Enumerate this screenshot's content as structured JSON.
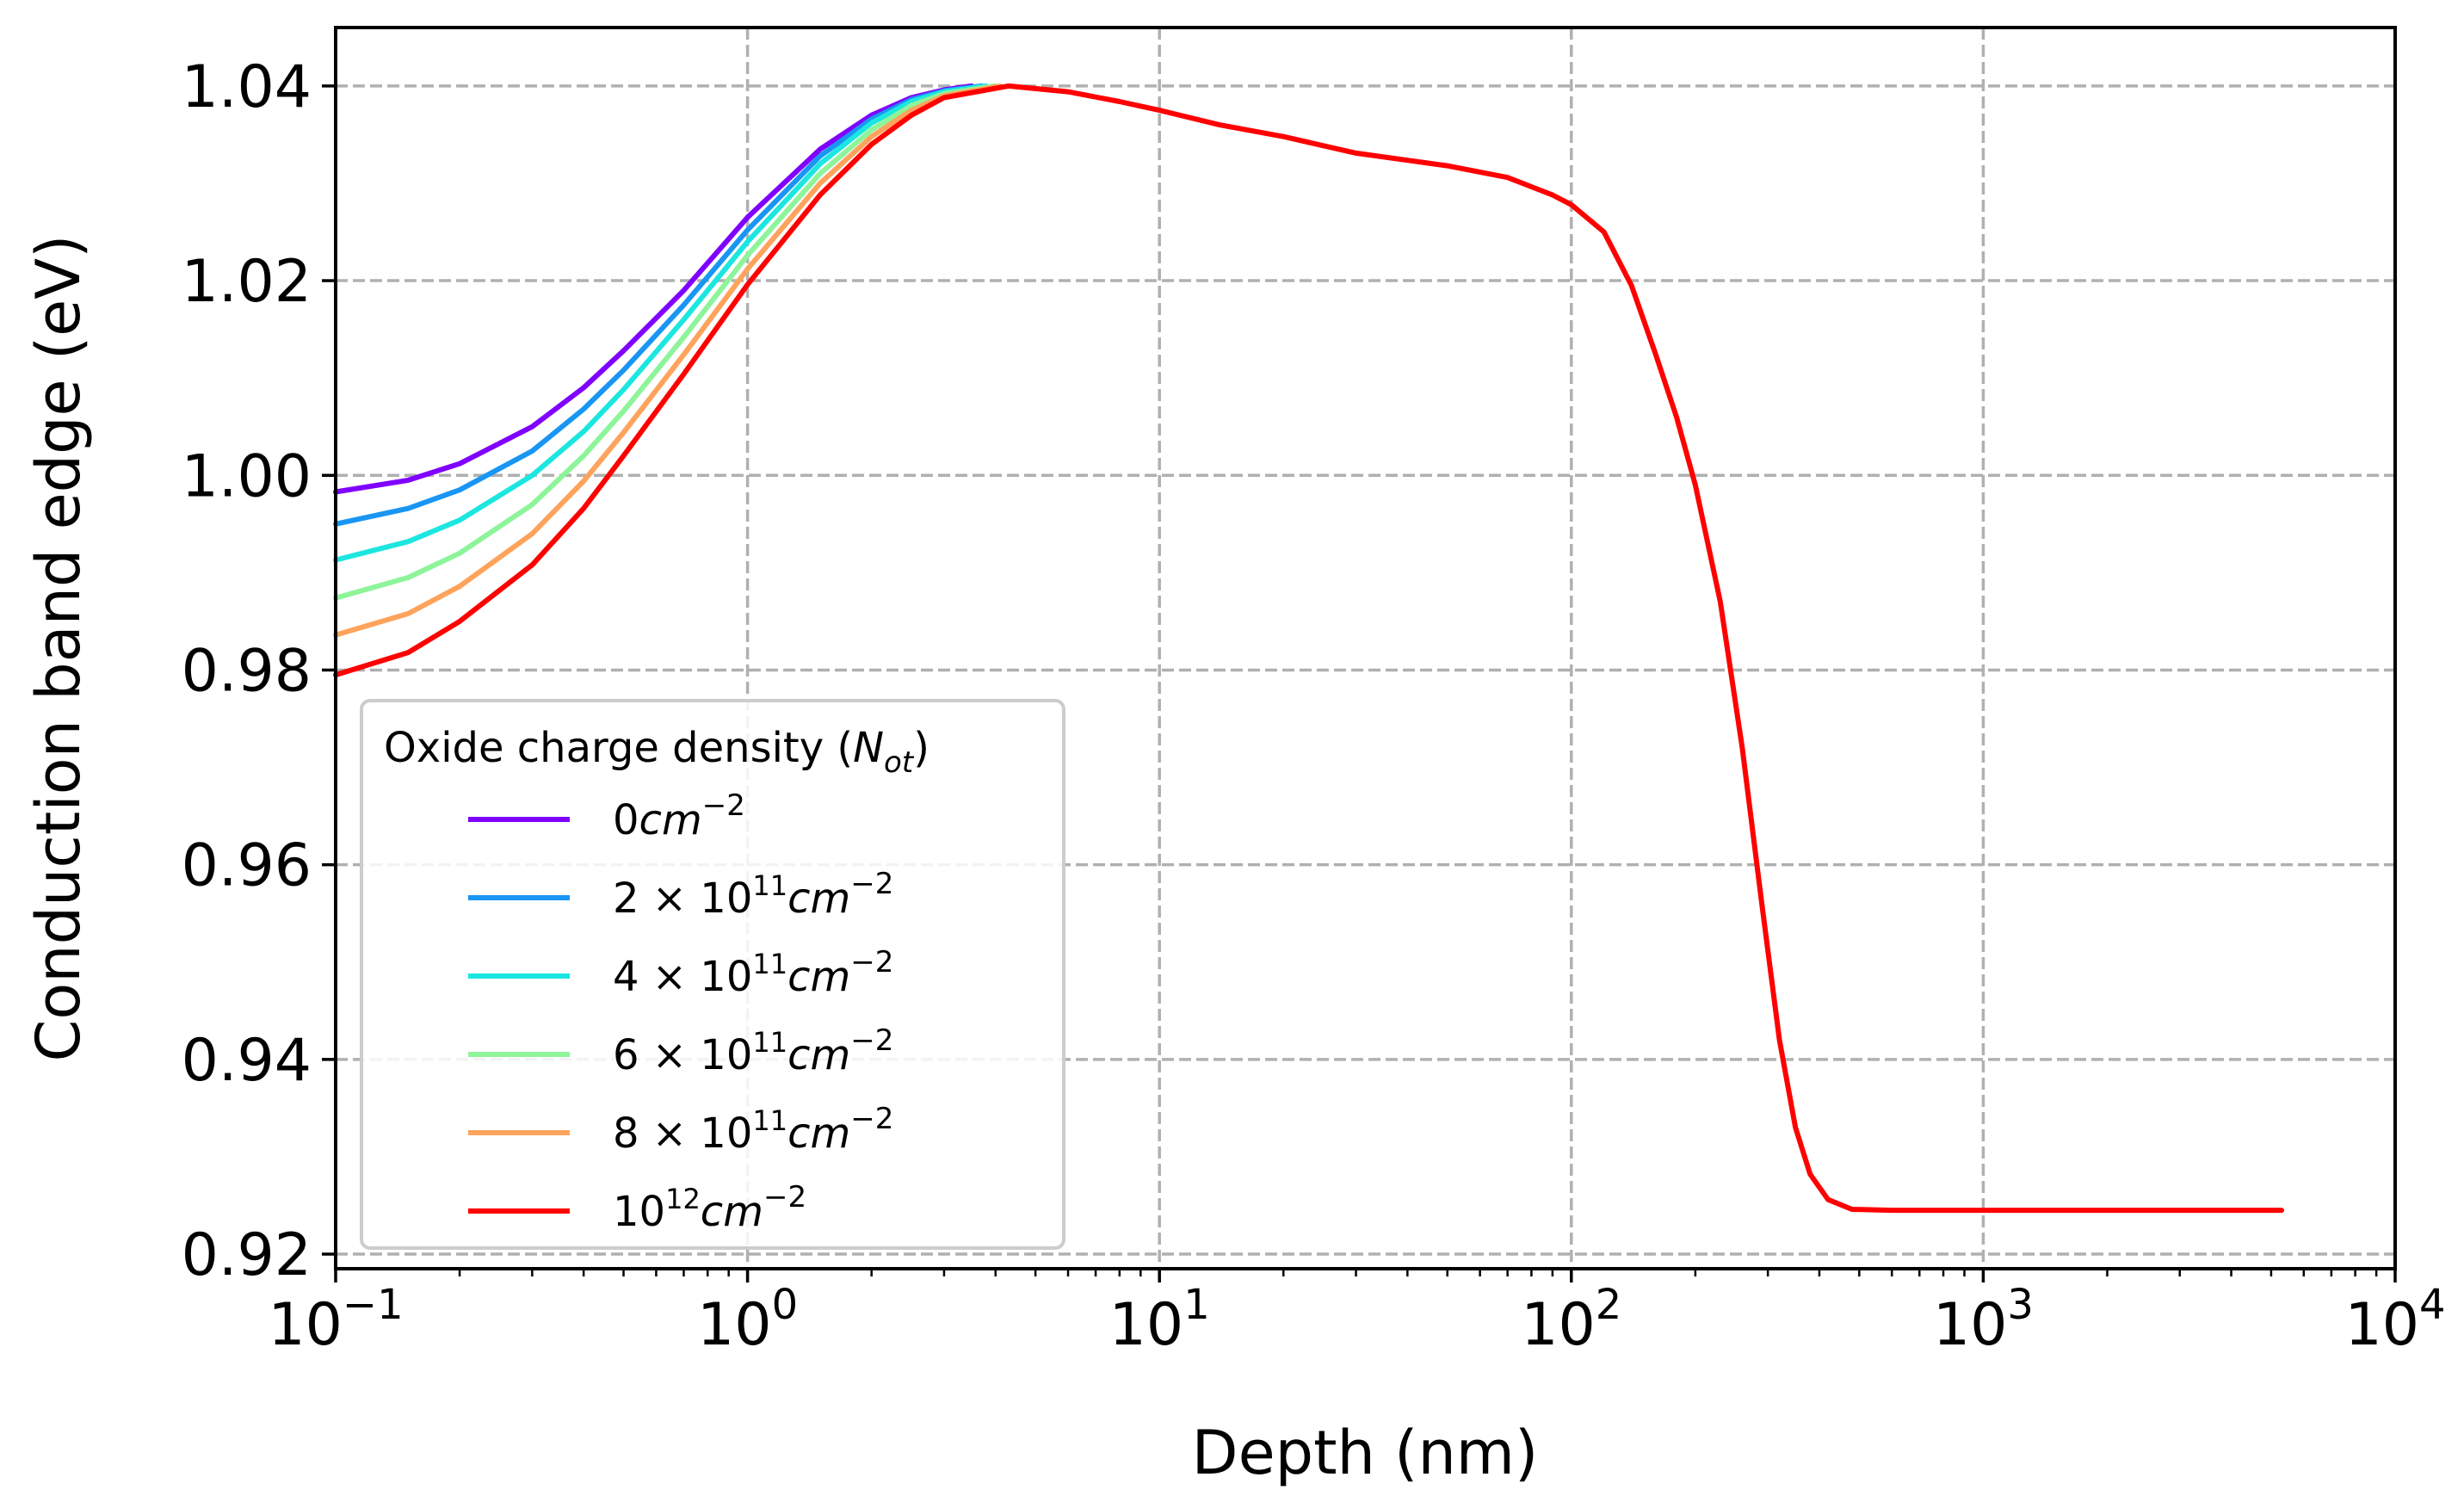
{
  "chart_data": {
    "type": "line",
    "x_scale": "log",
    "xlabel": "Depth (nm)",
    "ylabel": "Conduction band edge (eV)",
    "xlim": [
      0.1,
      10000
    ],
    "ylim": [
      0.9185,
      1.046
    ],
    "grid": true,
    "x_ticks": [
      {
        "value": 0.1,
        "base": "10",
        "exp": "−1"
      },
      {
        "value": 1,
        "base": "10",
        "exp": "0"
      },
      {
        "value": 10,
        "base": "10",
        "exp": "1"
      },
      {
        "value": 100,
        "base": "10",
        "exp": "2"
      },
      {
        "value": 1000,
        "base": "10",
        "exp": "3"
      },
      {
        "value": 10000,
        "base": "10",
        "exp": "4"
      }
    ],
    "y_ticks": [
      {
        "value": 0.92,
        "label": "0.92"
      },
      {
        "value": 0.94,
        "label": "0.94"
      },
      {
        "value": 0.96,
        "label": "0.96"
      },
      {
        "value": 0.98,
        "label": "0.98"
      },
      {
        "value": 1.0,
        "label": "1.00"
      },
      {
        "value": 1.02,
        "label": "1.02"
      },
      {
        "value": 1.04,
        "label": "1.04"
      }
    ],
    "legend": {
      "title": "Oxide charge density (",
      "title_symbol": "N",
      "title_sub": "ot",
      "title_close": ")",
      "placement": "lower-left"
    },
    "series": [
      {
        "name": "0cm−2",
        "coef": "",
        "power": "",
        "unit": "cm",
        "unit_exp": "−2",
        "lead": "0",
        "color": "#8000ff",
        "points": [
          [
            0.1,
            0.9983
          ],
          [
            0.15,
            0.9995
          ],
          [
            0.2,
            1.0012
          ],
          [
            0.3,
            1.005
          ],
          [
            0.4,
            1.009
          ],
          [
            0.5,
            1.0128
          ],
          [
            0.7,
            1.019
          ],
          [
            1.0,
            1.0265
          ],
          [
            1.5,
            1.0335
          ],
          [
            2.0,
            1.037
          ],
          [
            2.5,
            1.0388
          ],
          [
            3.0,
            1.0396
          ],
          [
            3.5,
            1.04
          ]
        ]
      },
      {
        "name": "2 × 10¹¹cm−2",
        "coef": "2 × ",
        "power": "11",
        "unit": "cm",
        "unit_exp": "−2",
        "lead": "10",
        "color": "#1996f3",
        "points": [
          [
            0.1,
            0.995
          ],
          [
            0.15,
            0.9966
          ],
          [
            0.2,
            0.9985
          ],
          [
            0.3,
            1.0025
          ],
          [
            0.4,
            1.0068
          ],
          [
            0.5,
            1.0108
          ],
          [
            0.7,
            1.0175
          ],
          [
            1.0,
            1.0252
          ],
          [
            1.5,
            1.0328
          ],
          [
            2.0,
            1.0366
          ],
          [
            2.5,
            1.0386
          ],
          [
            3.0,
            1.0395
          ],
          [
            3.7,
            1.04
          ]
        ]
      },
      {
        "name": "4 × 10¹¹cm−2",
        "coef": "4 × ",
        "power": "11",
        "unit": "cm",
        "unit_exp": "−2",
        "lead": "10",
        "color": "#1ce6e0",
        "points": [
          [
            0.1,
            0.9913
          ],
          [
            0.15,
            0.9932
          ],
          [
            0.2,
            0.9954
          ],
          [
            0.3,
            1.0
          ],
          [
            0.4,
            1.0045
          ],
          [
            0.5,
            1.0088
          ],
          [
            0.7,
            1.016
          ],
          [
            1.0,
            1.024
          ],
          [
            1.5,
            1.032
          ],
          [
            2.0,
            1.0362
          ],
          [
            2.5,
            1.0384
          ],
          [
            3.0,
            1.0394
          ],
          [
            3.8,
            1.04
          ]
        ]
      },
      {
        "name": "6 × 10¹¹cm−2",
        "coef": "6 × ",
        "power": "11",
        "unit": "cm",
        "unit_exp": "−2",
        "lead": "10",
        "color": "#8ef49a",
        "points": [
          [
            0.1,
            0.9874
          ],
          [
            0.15,
            0.9895
          ],
          [
            0.2,
            0.992
          ],
          [
            0.3,
            0.997
          ],
          [
            0.4,
            1.002
          ],
          [
            0.5,
            1.0066
          ],
          [
            0.7,
            1.0142
          ],
          [
            1.0,
            1.0226
          ],
          [
            1.5,
            1.031
          ],
          [
            2.0,
            1.0355
          ],
          [
            2.5,
            1.038
          ],
          [
            3.0,
            1.0392
          ],
          [
            4.0,
            1.04
          ]
        ]
      },
      {
        "name": "8 × 10¹¹cm−2",
        "coef": "8 × ",
        "power": "11",
        "unit": "cm",
        "unit_exp": "−2",
        "lead": "10",
        "color": "#fea35c",
        "points": [
          [
            0.1,
            0.9836
          ],
          [
            0.15,
            0.9858
          ],
          [
            0.2,
            0.9886
          ],
          [
            0.3,
            0.994
          ],
          [
            0.4,
            0.9994
          ],
          [
            0.5,
            1.0044
          ],
          [
            0.7,
            1.0124
          ],
          [
            1.0,
            1.0212
          ],
          [
            1.5,
            1.03
          ],
          [
            2.0,
            1.0348
          ],
          [
            2.5,
            1.0375
          ],
          [
            3.0,
            1.039
          ],
          [
            4.1,
            1.04
          ]
        ]
      },
      {
        "name": "10¹²cm−2",
        "coef": "",
        "power": "12",
        "unit": "cm",
        "unit_exp": "−2",
        "lead": "10",
        "color": "#ff0000",
        "points": [
          [
            0.1,
            0.9795
          ],
          [
            0.15,
            0.9818
          ],
          [
            0.2,
            0.985
          ],
          [
            0.3,
            0.9908
          ],
          [
            0.4,
            0.9966
          ],
          [
            0.5,
            1.002
          ],
          [
            0.7,
            1.0104
          ],
          [
            1.0,
            1.0196
          ],
          [
            1.5,
            1.0288
          ],
          [
            2.0,
            1.034
          ],
          [
            2.5,
            1.037
          ],
          [
            3.0,
            1.0388
          ],
          [
            4.3,
            1.04
          ],
          [
            6,
            1.0394
          ],
          [
            8,
            1.0384
          ],
          [
            10,
            1.0375
          ],
          [
            14,
            1.036
          ],
          [
            20,
            1.0348
          ],
          [
            30,
            1.0331
          ],
          [
            50,
            1.0318
          ],
          [
            70,
            1.0306
          ],
          [
            90,
            1.0288
          ],
          [
            100,
            1.0278
          ],
          [
            120,
            1.025
          ],
          [
            140,
            1.0195
          ],
          [
            160,
            1.0125
          ],
          [
            180,
            1.006
          ],
          [
            200,
            0.999
          ],
          [
            230,
            0.987
          ],
          [
            260,
            0.972
          ],
          [
            290,
            0.956
          ],
          [
            320,
            0.942
          ],
          [
            350,
            0.933
          ],
          [
            380,
            0.9282
          ],
          [
            420,
            0.9256
          ],
          [
            480,
            0.9246
          ],
          [
            600,
            0.9245
          ],
          [
            1000,
            0.9245
          ],
          [
            2000,
            0.9245
          ],
          [
            5300,
            0.9245
          ]
        ]
      }
    ]
  }
}
